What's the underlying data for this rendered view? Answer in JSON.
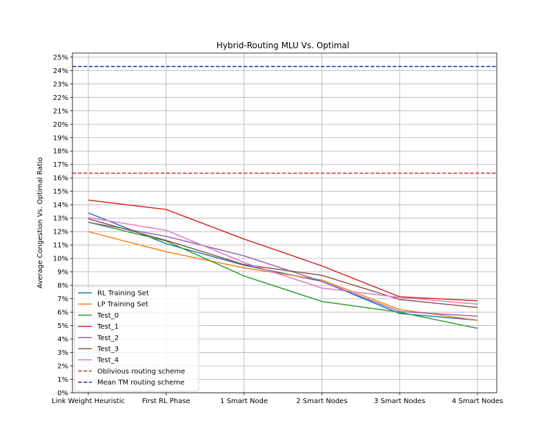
{
  "chart_data": {
    "type": "line",
    "title": "Hybrid-Routing MLU Vs. Optimal",
    "xlabel": "",
    "ylabel": "Average Congestion Vs. Optimal Ratio",
    "categories": [
      "Link Weight Heuristic",
      "First RL Phase",
      "1 Smart Node",
      "2 Smart Nodes",
      "3 Smart Nodes",
      "4 Smart Nodes"
    ],
    "ylim": [
      0,
      25.3
    ],
    "yticks": [
      0,
      1,
      2,
      3,
      4,
      5,
      6,
      7,
      8,
      9,
      10,
      11,
      12,
      13,
      14,
      15,
      16,
      17,
      18,
      19,
      20,
      21,
      22,
      23,
      24,
      25
    ],
    "ytick_labels": [
      "0%",
      "1%",
      "2%",
      "3%",
      "4%",
      "5%",
      "6%",
      "7%",
      "8%",
      "9%",
      "10%",
      "11%",
      "12%",
      "13%",
      "14%",
      "15%",
      "16%",
      "17%",
      "18%",
      "19%",
      "20%",
      "21%",
      "22%",
      "23%",
      "24%",
      "25%"
    ],
    "grid": true,
    "legend_position": "bottom-left",
    "series": [
      {
        "name": "RL Training Set",
        "color": "#1f77b4",
        "style": "solid",
        "values": [
          13.4,
          11.1,
          9.5,
          8.3,
          5.9,
          5.4
        ]
      },
      {
        "name": "LP Training Set",
        "color": "#ff7f0e",
        "style": "solid",
        "values": [
          12.0,
          10.5,
          9.3,
          8.4,
          6.2,
          5.4
        ]
      },
      {
        "name": "Test_0",
        "color": "#2ca02c",
        "style": "solid",
        "values": [
          12.7,
          11.3,
          8.7,
          6.8,
          6.0,
          4.8
        ]
      },
      {
        "name": "Test_1",
        "color": "#d62728",
        "style": "solid",
        "values": [
          14.35,
          13.65,
          11.45,
          9.45,
          7.15,
          6.85
        ]
      },
      {
        "name": "Test_2",
        "color": "#9467bd",
        "style": "solid",
        "values": [
          12.7,
          11.65,
          10.2,
          8.3,
          6.05,
          5.7
        ]
      },
      {
        "name": "Test_3",
        "color": "#8c564b",
        "style": "solid",
        "values": [
          12.95,
          11.35,
          9.55,
          8.75,
          6.95,
          6.35
        ]
      },
      {
        "name": "Test_4",
        "color": "#e377c2",
        "style": "solid",
        "values": [
          13.05,
          12.1,
          9.7,
          7.8,
          7.1,
          6.6
        ]
      },
      {
        "name": "Oblivious routing scheme",
        "color": "#d62728",
        "style": "dashed",
        "constant": 16.35
      },
      {
        "name": "Mean TM routing scheme",
        "color": "#1a24b4",
        "style": "dashed",
        "constant": 24.3
      }
    ]
  }
}
